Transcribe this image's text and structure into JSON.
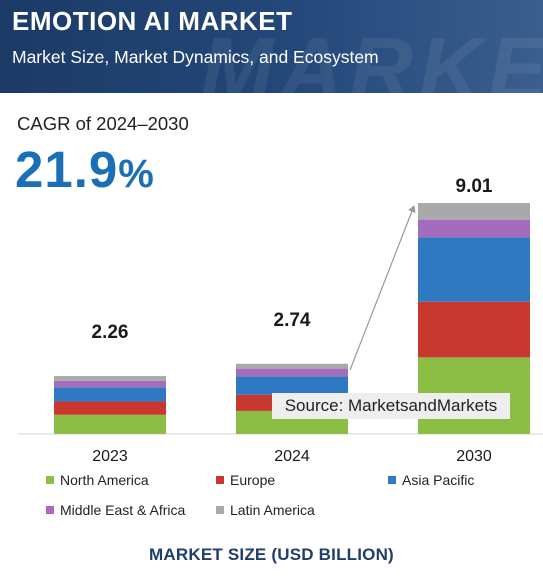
{
  "header": {
    "title": "EMOTION AI MARKET",
    "subtitle": "Market Size, Market Dynamics, and Ecosystem"
  },
  "cagr": {
    "label": "CAGR of 2024–2030",
    "value": "21.9",
    "unit": "%"
  },
  "source": "Source: MarketsandMarkets",
  "footer": "MARKET SIZE (USD BILLION)",
  "chart_data": {
    "type": "bar",
    "stacked": true,
    "categories": [
      "2023",
      "2024",
      "2030"
    ],
    "totals": [
      "2.26",
      "2.74",
      "9.01"
    ],
    "ylabel": "MARKET SIZE (USD BILLION)",
    "ylim": [
      0,
      9.01
    ],
    "grid": false,
    "legend_position": "bottom",
    "series": [
      {
        "name": "North America",
        "color": "#8cbd45",
        "values": [
          0.75,
          0.9,
          2.99
        ]
      },
      {
        "name": "Europe",
        "color": "#c8382e",
        "values": [
          0.52,
          0.63,
          2.17
        ]
      },
      {
        "name": "Asia Pacific",
        "color": "#2f78c2",
        "values": [
          0.55,
          0.72,
          2.51
        ]
      },
      {
        "name": "Middle East & Africa",
        "color": "#a56bbf",
        "values": [
          0.25,
          0.3,
          0.69
        ]
      },
      {
        "name": "Latin America",
        "color": "#a9a9a9",
        "values": [
          0.19,
          0.19,
          0.65
        ]
      }
    ]
  }
}
